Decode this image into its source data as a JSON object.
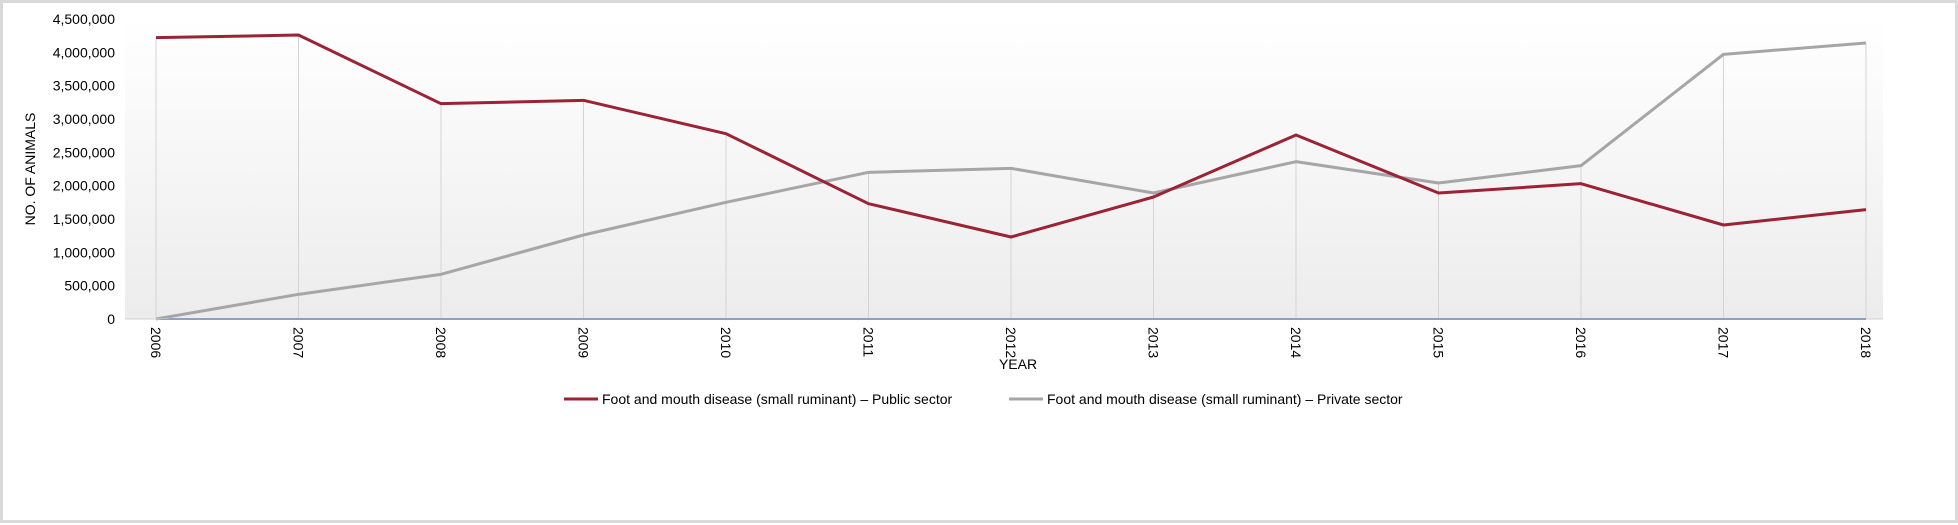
{
  "chart_data": {
    "type": "line",
    "title": "",
    "xlabel": "YEAR",
    "ylabel": "NO. OF ANIMALS",
    "ylim": [
      0,
      4500000
    ],
    "y_tick_step": 500000,
    "y_tick_labels": [
      "0",
      "500,000",
      "1,000,000",
      "1,500,000",
      "2,000,000",
      "2,500,000",
      "3,000,000",
      "3,500,000",
      "4,000,000",
      "4,500,000"
    ],
    "categories": [
      "2006",
      "2007",
      "2008",
      "2009",
      "2010",
      "2011",
      "2012",
      "2013",
      "2014",
      "2015",
      "2016",
      "2017",
      "2018"
    ],
    "grid": "vertical drop lines at each category",
    "legend_position": "bottom",
    "background": "gradient white to light gray",
    "series": [
      {
        "name": "Foot and mouth disease (small ruminant) – Public sector",
        "color": "#9b2335",
        "values": [
          4220000,
          4260000,
          3230000,
          3280000,
          2780000,
          1730000,
          1230000,
          1830000,
          2760000,
          1890000,
          2030000,
          1410000,
          1640000
        ]
      },
      {
        "name": "Foot and mouth disease (small ruminant) – Private sector",
        "color": "#a6a6a6",
        "values": [
          0,
          370000,
          670000,
          1260000,
          1750000,
          2200000,
          2260000,
          1890000,
          2360000,
          2040000,
          2300000,
          3970000,
          4140000
        ]
      },
      {
        "color": "#4472c4",
        "values": [
          0,
          0,
          0,
          0,
          0,
          0,
          0,
          0,
          0,
          0,
          0,
          0,
          0
        ]
      }
    ]
  }
}
